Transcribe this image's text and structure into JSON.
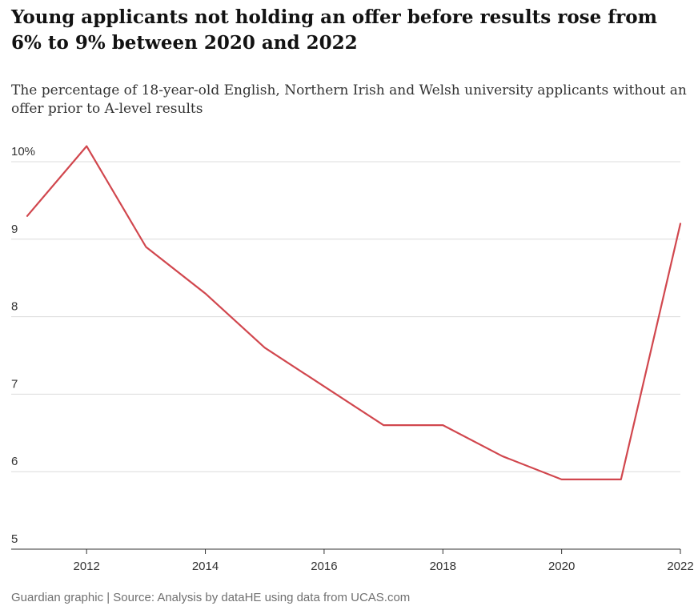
{
  "header": {
    "title": "Young applicants not holding an offer before results rose from 6% to 9% between 2020 and 2022",
    "subtitle": "The percentage of 18-year-old English, Northern Irish and Welsh university applicants without an offer prior to A-level results"
  },
  "footer": {
    "source": "Guardian graphic | Source: Analysis by dataHE using data from UCAS.com"
  },
  "colors": {
    "line": "#d1474e",
    "grid": "#dcdcdc",
    "axis": "#333333"
  },
  "chart_data": {
    "type": "line",
    "x": [
      2011,
      2012,
      2013,
      2014,
      2015,
      2016,
      2017,
      2018,
      2019,
      2020,
      2021,
      2022
    ],
    "values": [
      9.3,
      10.2,
      8.9,
      8.3,
      7.6,
      7.1,
      6.6,
      6.6,
      6.2,
      5.9,
      5.9,
      9.2
    ],
    "xlim": [
      2011,
      2022
    ],
    "ylim": [
      5,
      10
    ],
    "yticks": [
      5,
      6,
      7,
      8,
      9,
      10
    ],
    "ytick_labels": [
      "5",
      "6",
      "7",
      "8",
      "9",
      "10%"
    ],
    "xticks": [
      2012,
      2014,
      2016,
      2018,
      2020,
      2022
    ],
    "xtick_labels": [
      "2012",
      "2014",
      "2016",
      "2018",
      "2020",
      "2022"
    ],
    "grid": true
  }
}
